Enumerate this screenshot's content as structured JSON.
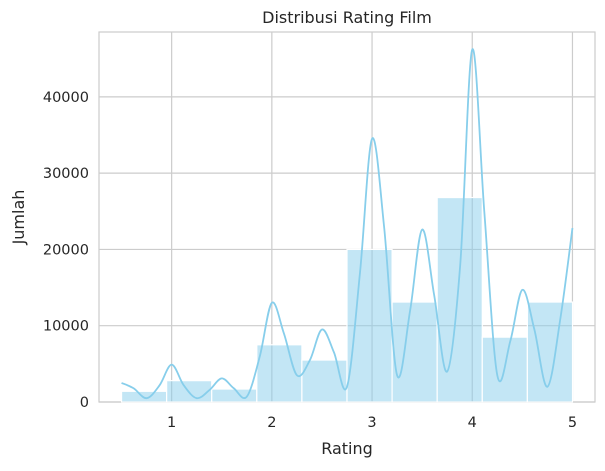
{
  "chart_data": {
    "type": "bar",
    "title": "Distribusi Rating Film",
    "xlabel": "Rating",
    "ylabel": "Jumlah",
    "xlim": [
      0.275,
      5.225
    ],
    "ylim": [
      0,
      48500
    ],
    "xticks": [
      1,
      2,
      3,
      4,
      5
    ],
    "xtick_labels": [
      "1",
      "2",
      "3",
      "4",
      "5"
    ],
    "yticks": [
      0,
      10000,
      20000,
      30000,
      40000
    ],
    "ytick_labels": [
      "0",
      "10000",
      "20000",
      "30000",
      "40000"
    ],
    "grid": true,
    "bar_color": "#87CEEB",
    "bar_opacity": 0.5,
    "line_color": "#87CEEB",
    "bins": [
      {
        "start": 0.5,
        "end": 0.95,
        "value": 1400
      },
      {
        "start": 0.95,
        "end": 1.4,
        "value": 2800
      },
      {
        "start": 1.4,
        "end": 1.85,
        "value": 1700
      },
      {
        "start": 1.85,
        "end": 2.3,
        "value": 7500
      },
      {
        "start": 2.3,
        "end": 2.75,
        "value": 5500
      },
      {
        "start": 2.75,
        "end": 3.2,
        "value": 20000
      },
      {
        "start": 3.2,
        "end": 3.65,
        "value": 13100
      },
      {
        "start": 3.65,
        "end": 4.1,
        "value": 26800
      },
      {
        "start": 4.1,
        "end": 4.55,
        "value": 8500
      },
      {
        "start": 4.55,
        "end": 5.0,
        "value": 13100
      }
    ],
    "kde": {
      "x": [
        0.5,
        0.62,
        0.75,
        0.88,
        1.0,
        1.12,
        1.25,
        1.38,
        1.5,
        1.62,
        1.75,
        1.88,
        2.0,
        2.12,
        2.25,
        2.38,
        2.5,
        2.62,
        2.75,
        2.88,
        3.0,
        3.12,
        3.25,
        3.38,
        3.5,
        3.62,
        3.75,
        3.88,
        4.0,
        4.12,
        4.25,
        4.38,
        4.5,
        4.62,
        4.75,
        4.88,
        5.0
      ],
      "y": [
        2500,
        1800,
        500,
        2200,
        4900,
        2200,
        500,
        1600,
        3100,
        1800,
        700,
        6000,
        13000,
        9000,
        3500,
        5500,
        9500,
        6500,
        2000,
        17000,
        34500,
        23000,
        3500,
        12000,
        22600,
        14000,
        4000,
        18000,
        46200,
        25000,
        3500,
        8000,
        14700,
        9500,
        2000,
        11000,
        22800
      ]
    }
  }
}
